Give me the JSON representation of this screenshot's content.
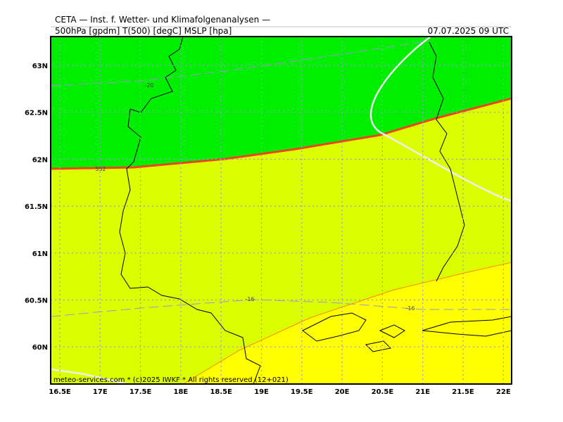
{
  "header": {
    "title": "CETA — Inst. f. Wetter- und Klimafolgenanalysen —",
    "fields": "500hPa [gpdm] T(500) [degC] MSLP [hpa]",
    "valid_time": "07.07.2025 09 UTC"
  },
  "lat_labels": [
    "63N",
    "62.5N",
    "62N",
    "61.5N",
    "61N",
    "60.5N",
    "60N"
  ],
  "lon_labels": [
    "16.5E",
    "17E",
    "17.5E",
    "18E",
    "18.5E",
    "19E",
    "19.5E",
    "20E",
    "20.5E",
    "21E",
    "21.5E",
    "22E"
  ],
  "contour_labels": [
    "-20",
    "552",
    "-16",
    "-16"
  ],
  "footer": "meteo-services.com * (c)2025 IWKF * All rights reserved (12+021)"
}
